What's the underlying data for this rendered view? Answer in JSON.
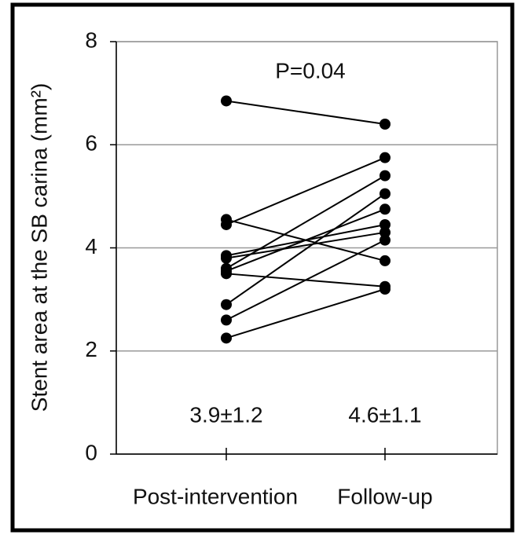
{
  "chart_data": {
    "type": "paired-dot",
    "y_label": "Stent area at the SB carina (mm²)",
    "categories": [
      "Post-intervention",
      "Follow-up"
    ],
    "ylim": [
      0,
      8
    ],
    "yticks": [
      0,
      2,
      4,
      6,
      8
    ],
    "grid": true,
    "annotations": [
      "P=0.04",
      "3.9±1.2",
      "4.6±1.1"
    ],
    "color": "#000000",
    "series": [
      {
        "values": [
          6.85,
          6.4
        ]
      },
      {
        "values": [
          4.55,
          3.75
        ]
      },
      {
        "values": [
          4.45,
          5.75
        ]
      },
      {
        "values": [
          3.85,
          4.45
        ]
      },
      {
        "values": [
          3.8,
          4.3
        ]
      },
      {
        "values": [
          3.6,
          5.4
        ]
      },
      {
        "values": [
          3.55,
          4.75
        ]
      },
      {
        "values": [
          3.5,
          3.25
        ]
      },
      {
        "values": [
          2.9,
          5.05
        ]
      },
      {
        "values": [
          2.6,
          4.15
        ]
      },
      {
        "values": [
          2.25,
          3.2
        ]
      }
    ]
  }
}
